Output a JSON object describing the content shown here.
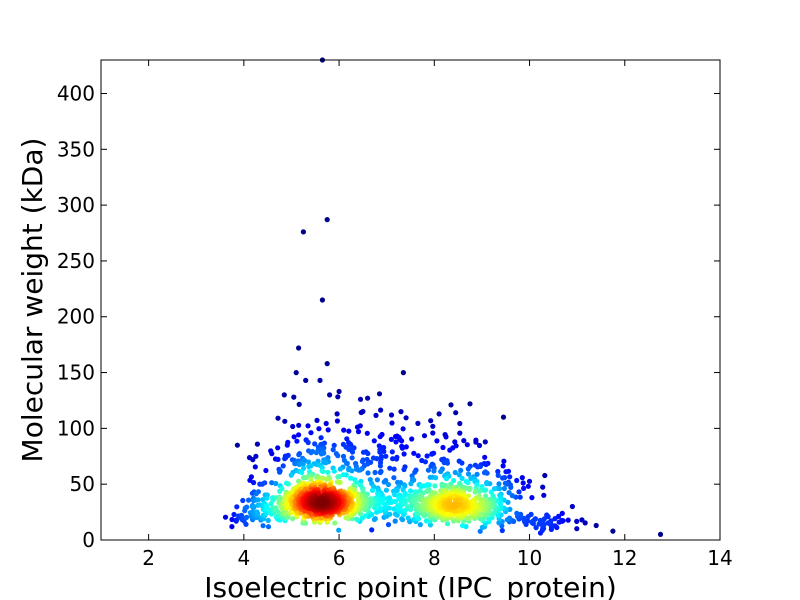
{
  "chart_data": {
    "type": "scatter",
    "title": "",
    "xlabel": "Isoelectric point (IPC_protein)",
    "ylabel": "Molecular weight (kDa)",
    "xlim": [
      1,
      14
    ],
    "ylim": [
      0,
      430
    ],
    "xticks": [
      2,
      4,
      6,
      8,
      10,
      12,
      14
    ],
    "yticks": [
      0,
      50,
      100,
      150,
      200,
      250,
      300,
      350,
      400
    ],
    "grid": false,
    "legend": "none",
    "color_encoding": "point density (jet colormap: blue = low, red = high)",
    "colormap": [
      "#00007f",
      "#0000ff",
      "#0080ff",
      "#00ffff",
      "#80ff80",
      "#ffff00",
      "#ff8000",
      "#ff0000",
      "#7f0000"
    ],
    "outliers": [
      {
        "x": 5.65,
        "y": 430
      },
      {
        "x": 5.75,
        "y": 287
      },
      {
        "x": 5.25,
        "y": 276
      },
      {
        "x": 5.65,
        "y": 215
      },
      {
        "x": 5.15,
        "y": 172
      },
      {
        "x": 5.75,
        "y": 158
      },
      {
        "x": 7.35,
        "y": 150
      },
      {
        "x": 5.1,
        "y": 150
      },
      {
        "x": 5.6,
        "y": 143
      },
      {
        "x": 5.3,
        "y": 143
      },
      {
        "x": 6.0,
        "y": 133
      },
      {
        "x": 5.8,
        "y": 130
      },
      {
        "x": 6.45,
        "y": 126
      },
      {
        "x": 6.85,
        "y": 131
      },
      {
        "x": 6.6,
        "y": 127
      },
      {
        "x": 8.35,
        "y": 121
      },
      {
        "x": 8.75,
        "y": 122
      },
      {
        "x": 4.85,
        "y": 130
      },
      {
        "x": 5.05,
        "y": 128
      },
      {
        "x": 7.3,
        "y": 115
      },
      {
        "x": 7.1,
        "y": 112
      },
      {
        "x": 8.1,
        "y": 113
      },
      {
        "x": 8.45,
        "y": 114
      },
      {
        "x": 12.75,
        "y": 5
      },
      {
        "x": 11.75,
        "y": 8
      },
      {
        "x": 11.4,
        "y": 13
      },
      {
        "x": 11.1,
        "y": 18
      },
      {
        "x": 10.9,
        "y": 30
      },
      {
        "x": 10.3,
        "y": 40
      },
      {
        "x": 10.05,
        "y": 38
      },
      {
        "x": 3.85,
        "y": 18
      },
      {
        "x": 3.75,
        "y": 12
      },
      {
        "x": 3.95,
        "y": 22
      }
    ],
    "clusters": [
      {
        "x_mean": 5.6,
        "y_mean": 30,
        "x_sd": 0.45,
        "y_sd": 9,
        "n": 650
      },
      {
        "x_mean": 8.5,
        "y_mean": 27,
        "x_sd": 0.55,
        "y_sd": 10,
        "n": 430
      },
      {
        "x_mean": 7.0,
        "y_mean": 28,
        "x_sd": 0.9,
        "y_sd": 12,
        "n": 260
      },
      {
        "x_mean": 5.4,
        "y_mean": 60,
        "x_sd": 0.6,
        "y_sd": 22,
        "n": 160
      },
      {
        "x_mean": 8.2,
        "y_mean": 60,
        "x_sd": 0.7,
        "y_sd": 18,
        "n": 110
      },
      {
        "x_mean": 6.5,
        "y_mean": 70,
        "x_sd": 0.8,
        "y_sd": 22,
        "n": 70
      },
      {
        "x_mean": 4.4,
        "y_mean": 20,
        "x_sd": 0.35,
        "y_sd": 10,
        "n": 90
      },
      {
        "x_mean": 10.2,
        "y_mean": 14,
        "x_sd": 0.5,
        "y_sd": 6,
        "n": 60
      },
      {
        "x_mean": 9.3,
        "y_mean": 40,
        "x_sd": 0.35,
        "y_sd": 14,
        "n": 50
      }
    ]
  }
}
